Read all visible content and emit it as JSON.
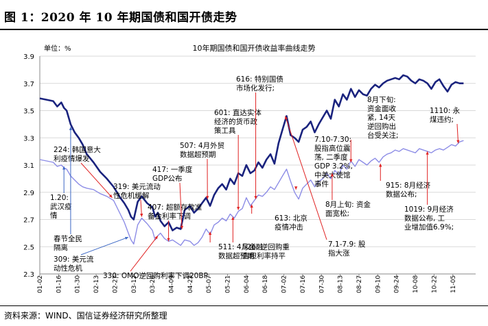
{
  "header": {
    "title": "图 1：2020 年 10 年期国债和国开债走势"
  },
  "source": {
    "text": "资料来源：WIND、国信证券经济研究所整理"
  },
  "colors": {
    "govt": "#1a237e",
    "cdb": "#8c8ce6",
    "annotation_arrow": "#e02020",
    "grid": "#d9d9d9"
  },
  "chart_data": {
    "type": "line",
    "title": "10年期国债和国开债收益率曲线走势",
    "unit_label": "单位：%",
    "ylim": [
      2.3,
      3.9
    ],
    "yticks": [
      2.3,
      2.5,
      2.7,
      2.9,
      3.1,
      3.3,
      3.5,
      3.7,
      3.9
    ],
    "ytick_labels": [
      "2.3",
      "2.5",
      "2.7",
      "2.9",
      "3.1",
      "3.3",
      "3.5",
      "3.7",
      "3.9"
    ],
    "xlim": [
      0,
      325
    ],
    "x_tick_days": [
      0,
      14,
      28,
      42,
      56,
      70,
      84,
      98,
      112,
      126,
      140,
      154,
      168,
      182,
      196,
      210,
      224,
      238,
      252,
      266,
      280,
      294,
      308
    ],
    "x_tick_labels": [
      "01-02",
      "01-16",
      "01-30",
      "02-13",
      "02-27",
      "03-12",
      "03-26",
      "04-09",
      "04-23",
      "05-07",
      "05-21",
      "06-04",
      "06-18",
      "07-02",
      "07-16",
      "07-30",
      "08-13",
      "08-27",
      "09-10",
      "09-24",
      "10-08",
      "10-22",
      "11-05"
    ],
    "x_unit": "days since 2020-01-02",
    "grid": "horizontal",
    "series": [
      {
        "name": "10年期国开债",
        "x": [
          0,
          5,
          10,
          13,
          16,
          18,
          20,
          23,
          26,
          29,
          32,
          35,
          40,
          45,
          50,
          55,
          60,
          63,
          66,
          68,
          70,
          73,
          76,
          80,
          84,
          86,
          88,
          90,
          93,
          96,
          99,
          102,
          105,
          108,
          112,
          115,
          118,
          121,
          124,
          127,
          130,
          133,
          136,
          139,
          142,
          145,
          148,
          151,
          154,
          157,
          160,
          163,
          166,
          169,
          172,
          175,
          178,
          181,
          184,
          187,
          190,
          193,
          196,
          199,
          202,
          205,
          208,
          211,
          214,
          217,
          220,
          223,
          226,
          229,
          232,
          235,
          238,
          241,
          244,
          247,
          250,
          253,
          256,
          259,
          262,
          265,
          268,
          271,
          274,
          277,
          280,
          283,
          286,
          289,
          292,
          295,
          298,
          301,
          304,
          307,
          310,
          313,
          316
        ],
        "values": [
          3.14,
          3.13,
          3.12,
          3.09,
          3.1,
          3.08,
          3.07,
          3.02,
          2.99,
          2.96,
          2.94,
          2.93,
          2.92,
          2.89,
          2.87,
          2.84,
          2.74,
          2.68,
          2.6,
          2.55,
          2.52,
          2.66,
          2.71,
          2.67,
          2.62,
          2.55,
          2.58,
          2.6,
          2.56,
          2.54,
          2.55,
          2.53,
          2.51,
          2.55,
          2.54,
          2.51,
          2.53,
          2.57,
          2.63,
          2.59,
          2.66,
          2.68,
          2.71,
          2.69,
          2.74,
          2.71,
          2.76,
          2.78,
          2.86,
          2.8,
          2.84,
          2.88,
          2.87,
          2.9,
          2.94,
          2.92,
          2.97,
          3.02,
          3.07,
          2.98,
          2.9,
          2.85,
          2.93,
          2.96,
          2.99,
          2.94,
          2.98,
          3.0,
          3.04,
          3.0,
          3.06,
          3.03,
          3.1,
          3.07,
          3.13,
          3.09,
          3.14,
          3.12,
          3.1,
          3.13,
          3.15,
          3.12,
          3.16,
          3.18,
          3.19,
          3.21,
          3.2,
          3.22,
          3.21,
          3.2,
          3.19,
          3.22,
          3.21,
          3.2,
          3.19,
          3.21,
          3.22,
          3.21,
          3.23,
          3.25,
          3.24,
          3.27,
          3.28
        ]
      },
      {
        "name": "10年期国债",
        "x": [
          0,
          5,
          10,
          13,
          16,
          18,
          20,
          23,
          26,
          29,
          32,
          35,
          40,
          45,
          50,
          55,
          60,
          63,
          66,
          68,
          70,
          73,
          76,
          80,
          84,
          86,
          88,
          90,
          93,
          96,
          99,
          102,
          105,
          108,
          112,
          115,
          118,
          121,
          124,
          127,
          130,
          133,
          136,
          139,
          142,
          145,
          148,
          151,
          154,
          157,
          160,
          163,
          166,
          169,
          172,
          175,
          178,
          181,
          184,
          187,
          190,
          193,
          196,
          199,
          202,
          205,
          208,
          211,
          214,
          217,
          220,
          223,
          226,
          229,
          232,
          235,
          238,
          241,
          244,
          247,
          250,
          253,
          256,
          259,
          262,
          265,
          268,
          271,
          274,
          277,
          280,
          283,
          286,
          289,
          292,
          295,
          298,
          301,
          304,
          307,
          310,
          313,
          316
        ],
        "values": [
          3.59,
          3.58,
          3.57,
          3.53,
          3.56,
          3.52,
          3.5,
          3.4,
          3.34,
          3.3,
          3.25,
          3.18,
          3.12,
          3.05,
          3.0,
          2.94,
          2.86,
          2.82,
          2.77,
          2.72,
          2.7,
          2.83,
          2.87,
          2.82,
          2.79,
          2.72,
          2.75,
          2.69,
          2.65,
          2.68,
          2.62,
          2.64,
          2.63,
          2.77,
          2.8,
          2.75,
          2.78,
          2.82,
          2.86,
          2.8,
          2.88,
          2.93,
          2.96,
          2.92,
          3.0,
          2.96,
          3.04,
          3.02,
          3.1,
          3.04,
          3.06,
          3.12,
          3.08,
          3.14,
          3.18,
          3.11,
          3.26,
          3.36,
          3.46,
          3.32,
          3.3,
          3.27,
          3.36,
          3.38,
          3.42,
          3.34,
          3.4,
          3.45,
          3.5,
          3.44,
          3.58,
          3.53,
          3.62,
          3.58,
          3.66,
          3.6,
          3.65,
          3.62,
          3.61,
          3.66,
          3.69,
          3.67,
          3.7,
          3.72,
          3.73,
          3.74,
          3.73,
          3.76,
          3.75,
          3.72,
          3.7,
          3.73,
          3.72,
          3.7,
          3.66,
          3.71,
          3.73,
          3.68,
          3.64,
          3.69,
          3.71,
          3.7,
          3.7
        ]
      }
    ],
    "annotations": [
      {
        "text_lines": [
          "1.20:",
          "武汉疫",
          "情"
        ],
        "target_x": 18,
        "target_y": 3.09,
        "color": "blue"
      },
      {
        "text_lines": [
          "224: 韩国意大",
          "利疫情爆发"
        ],
        "target_x": 54,
        "target_y": 2.86,
        "color": "red"
      },
      {
        "text_lines": [
          "春节全民",
          "隔离"
        ],
        "target_x": 23,
        "target_y": 3.38,
        "color": "blue"
      },
      {
        "text_lines": [
          "309: 美元流",
          "动性危机"
        ],
        "target_x": 66,
        "target_y": 2.57,
        "color": "blue"
      },
      {
        "text_lines": [
          "319: 美元流动",
          "性危机缓解"
        ],
        "target_x": 76,
        "target_y": 2.72,
        "color": "red"
      },
      {
        "text_lines": [
          "330: OMO逆回购利率下调20BP"
        ],
        "target_x": 88,
        "target_y": 2.58,
        "color": "red"
      },
      {
        "text_lines": [
          "407: 超额存款准",
          "备金利率下调"
        ],
        "target_x": 96,
        "target_y": 2.54,
        "color": "red"
      },
      {
        "text_lines": [
          "417: 一季度",
          "GDP公布"
        ],
        "target_x": 106,
        "target_y": 2.63,
        "color": "red"
      },
      {
        "text_lines": [
          "507: 4月外贸",
          "数据超预期"
        ],
        "target_x": 125,
        "target_y": 2.85,
        "color": "red"
      },
      {
        "text_lines": [
          "511: 4月金融",
          "数据超预期"
        ],
        "target_x": 127,
        "target_y": 2.61,
        "color": "red"
      },
      {
        "text_lines": [
          "601: 直达实体",
          "经济的货币政",
          "策工具"
        ],
        "target_x": 148,
        "target_y": 2.77,
        "color": "red"
      },
      {
        "text_lines": [
          "526: 逆回购重",
          "启但利率持平"
        ],
        "target_x": 144,
        "target_y": 2.72,
        "color": "red"
      },
      {
        "text_lines": [
          "616: 特别国债",
          "市场化发行;"
        ],
        "target_x": 161,
        "target_y": 2.85,
        "color": "red"
      },
      {
        "text_lines": [
          "613: 北京",
          "疫情冲击"
        ],
        "target_x": 158,
        "target_y": 2.81,
        "color": "red"
      },
      {
        "text_lines": [
          "7.10-7.30:",
          "股指高位震",
          "荡, 二季度",
          "GDP 3.2%,",
          "中美大使馆",
          "事件"
        ],
        "target_x": 191,
        "target_y": 2.92,
        "color": "red"
      },
      {
        "text_lines": [
          "7.1-7.9: 股",
          "指大涨"
        ],
        "target_x": 183,
        "target_y": 3.46,
        "color": "red"
      },
      {
        "text_lines": [
          "8月上旬: 资金",
          "面宽松;"
        ],
        "target_x": 218,
        "target_y": 3.04,
        "color": "red"
      },
      {
        "text_lines": [
          "8月下旬:",
          "资金面收",
          "紧, 14天",
          "逆回购出",
          "台受关注;"
        ],
        "target_x": 232,
        "target_y": 3.12,
        "color": "red"
      },
      {
        "text_lines": [
          "915: 8月经济",
          "数据公布;"
        ],
        "target_x": 254,
        "target_y": 3.11,
        "color": "red"
      },
      {
        "text_lines": [
          "1019: 9月经济",
          "数据公布, 工",
          "业增加值6.9%;"
        ],
        "target_x": 289,
        "target_y": 3.2,
        "color": "red"
      },
      {
        "text_lines": [
          "1110: 永",
          "煤违约;"
        ],
        "target_x": 312,
        "target_y": 3.26,
        "color": "red"
      }
    ]
  }
}
